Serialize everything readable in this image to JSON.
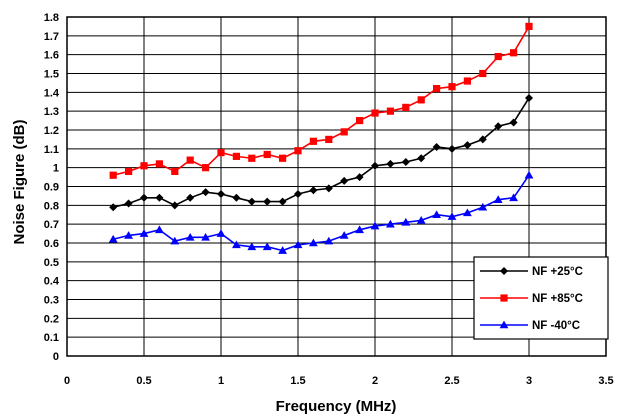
{
  "chart_data": {
    "type": "line",
    "title": "",
    "xlabel": "Frequency (MHz)",
    "ylabel": "Noise Figure (dB)",
    "xlim": [
      0,
      3.5
    ],
    "ylim": [
      0,
      1.8
    ],
    "xticks": [
      0,
      0.5,
      1,
      1.5,
      2,
      2.5,
      3,
      3.5
    ],
    "yticks": [
      0,
      0.1,
      0.2,
      0.3,
      0.4,
      0.5,
      0.6,
      0.7,
      0.8,
      0.9,
      1,
      1.1,
      1.2,
      1.3,
      1.4,
      1.5,
      1.6,
      1.7,
      1.8
    ],
    "xtick_labels": [
      "0",
      "0.5",
      "1",
      "1.5",
      "2",
      "2.5",
      "3",
      "3.5"
    ],
    "ytick_labels": [
      "0",
      "0.1",
      "0.2",
      "0.3",
      "0.4",
      "0.5",
      "0.6",
      "0.7",
      "0.8",
      "0.9",
      "1",
      "1.1",
      "1.2",
      "1.3",
      "1.4",
      "1.5",
      "1.6",
      "1.7",
      "1.8"
    ],
    "grid": {
      "horizontal": true,
      "vertical": true
    },
    "legend_position": "bottom-right",
    "x": [
      0.3,
      0.4,
      0.5,
      0.6,
      0.7,
      0.8,
      0.9,
      1.0,
      1.1,
      1.2,
      1.3,
      1.4,
      1.5,
      1.6,
      1.7,
      1.8,
      1.9,
      2.0,
      2.1,
      2.2,
      2.3,
      2.4,
      2.5,
      2.6,
      2.7,
      2.8,
      2.9,
      3.0
    ],
    "series": [
      {
        "name": "NF +25°C",
        "color": "#000000",
        "marker": "diamond",
        "values": [
          0.79,
          0.81,
          0.84,
          0.84,
          0.8,
          0.84,
          0.87,
          0.86,
          0.84,
          0.82,
          0.82,
          0.82,
          0.86,
          0.88,
          0.89,
          0.93,
          0.95,
          1.01,
          1.02,
          1.03,
          1.05,
          1.11,
          1.1,
          1.12,
          1.15,
          1.22,
          1.24,
          1.37
        ]
      },
      {
        "name": "NF +85°C",
        "color": "#ff0000",
        "marker": "square",
        "values": [
          0.96,
          0.98,
          1.01,
          1.02,
          0.98,
          1.04,
          1.0,
          1.08,
          1.06,
          1.05,
          1.07,
          1.05,
          1.09,
          1.14,
          1.15,
          1.19,
          1.25,
          1.29,
          1.3,
          1.32,
          1.36,
          1.42,
          1.43,
          1.46,
          1.5,
          1.59,
          1.61,
          1.75
        ]
      },
      {
        "name": "NF -40°C",
        "color": "#0000ff",
        "marker": "triangle",
        "values": [
          0.62,
          0.64,
          0.65,
          0.67,
          0.61,
          0.63,
          0.63,
          0.65,
          0.59,
          0.58,
          0.58,
          0.56,
          0.59,
          0.6,
          0.61,
          0.64,
          0.67,
          0.69,
          0.7,
          0.71,
          0.72,
          0.75,
          0.74,
          0.76,
          0.79,
          0.83,
          0.84,
          0.96
        ]
      }
    ]
  }
}
